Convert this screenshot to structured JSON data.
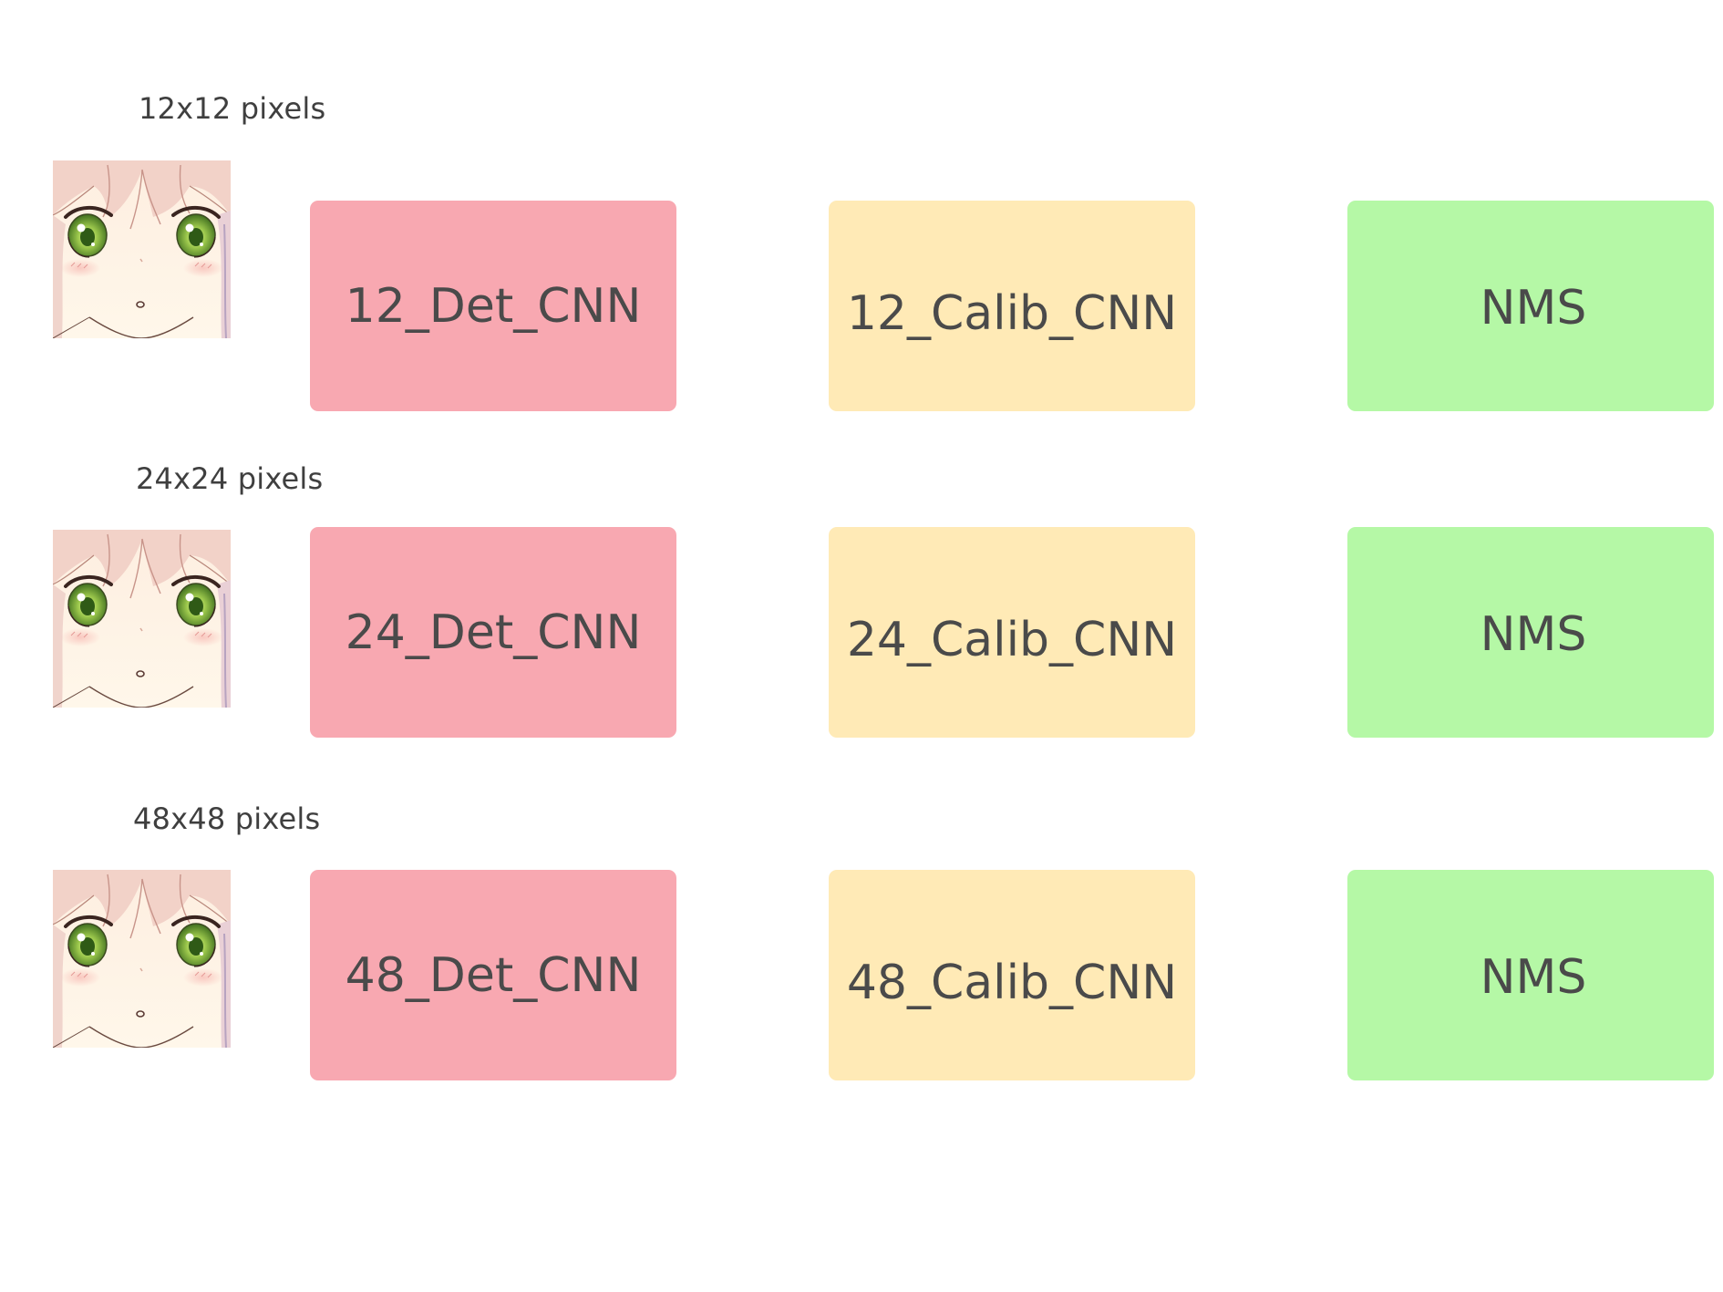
{
  "colors": {
    "det": "#f8a8b1",
    "calib": "#ffeab6",
    "nms": "#b5f8a6",
    "text": "#4a4a4a",
    "label": "#3f3f3f"
  },
  "rows": [
    {
      "size_label": "12x12 pixels",
      "det": "12_Det_CNN",
      "calib": "12_Calib_CNN",
      "nms": "NMS",
      "image": "anime-face-image"
    },
    {
      "size_label": "24x24 pixels",
      "det": "24_Det_CNN",
      "calib": "24_Calib_CNN",
      "nms": "NMS",
      "image": "anime-face-image"
    },
    {
      "size_label": "48x48 pixels",
      "det": "48_Det_CNN",
      "calib": "48_Calib_CNN",
      "nms": "NMS",
      "image": "anime-face-image"
    }
  ]
}
